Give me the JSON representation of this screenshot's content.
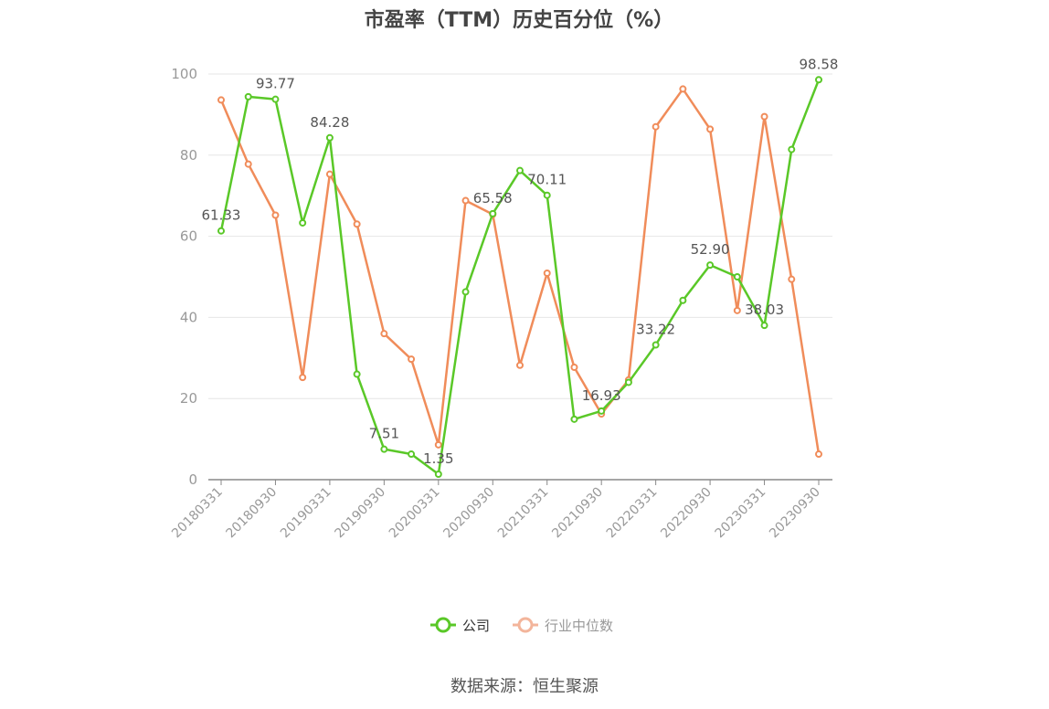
{
  "title": "市盈率（TTM）历史百分位（%）",
  "source": "数据来源：恒生聚源",
  "colors": {
    "company": "#5ac828",
    "industry": "#f08c5a",
    "grid": "#e6e6e6",
    "axis": "#888888",
    "tick_text": "#999999",
    "label_text": "#555555"
  },
  "legend": [
    {
      "name": "公司",
      "color": "#5ac828",
      "active": true
    },
    {
      "name": "行业中位数",
      "color": "#f3b59b",
      "active": false
    }
  ],
  "chart_data": {
    "type": "line",
    "title": "市盈率（TTM）历史百分位（%）",
    "xlabel": "",
    "ylabel": "",
    "ylim": [
      0,
      100
    ],
    "yticks": [
      0,
      20,
      40,
      60,
      80,
      100
    ],
    "grid": true,
    "legend_position": "bottom",
    "x": [
      "20180331",
      "20180630",
      "20180930",
      "20181231",
      "20190331",
      "20190630",
      "20190930",
      "20191231",
      "20200331",
      "20200630",
      "20200930",
      "20201231",
      "20210331",
      "20210630",
      "20210930",
      "20211231",
      "20220331",
      "20220630",
      "20220930",
      "20221231",
      "20230331",
      "20230630",
      "20230930"
    ],
    "x_tick_labels": [
      "20180331",
      "20180930",
      "20190331",
      "20190930",
      "20200331",
      "20200930",
      "20210331",
      "20210930",
      "20220331",
      "20220930",
      "20230331",
      "20230930"
    ],
    "series": [
      {
        "name": "公司",
        "values": [
          61.33,
          94.4,
          93.77,
          63.3,
          84.28,
          26.0,
          7.51,
          6.3,
          1.35,
          46.3,
          65.58,
          76.2,
          70.11,
          14.9,
          16.93,
          24.0,
          33.22,
          44.2,
          52.9,
          50.0,
          38.03,
          81.4,
          98.58
        ],
        "labels": {
          "0": "61.33",
          "2": "93.77",
          "4": "84.28",
          "6": "7.51",
          "8": "1.35",
          "10": "65.58",
          "12": "70.11",
          "14": "16.93",
          "16": "33.22",
          "18": "52.90",
          "20": "38.03",
          "22": "98.58"
        }
      },
      {
        "name": "行业中位数",
        "values": [
          93.6,
          77.8,
          65.2,
          25.2,
          75.3,
          63.0,
          36.0,
          29.7,
          8.6,
          68.8,
          65.4,
          28.2,
          50.9,
          27.7,
          16.2,
          24.6,
          87.0,
          96.3,
          86.4,
          41.7,
          89.5,
          49.4,
          6.3
        ]
      }
    ]
  }
}
